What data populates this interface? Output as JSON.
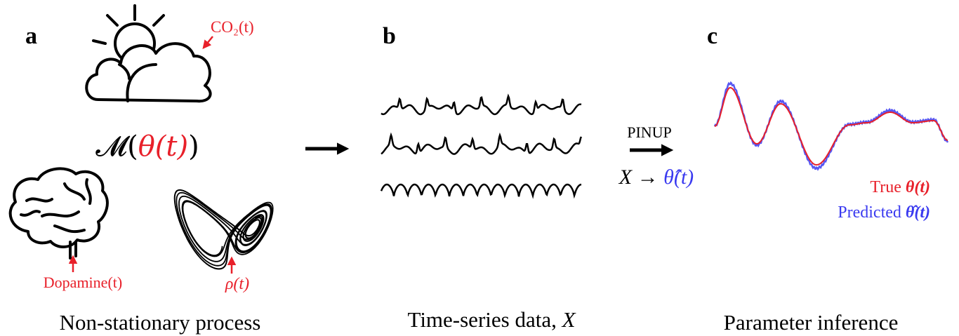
{
  "panels": [
    {
      "label": "a",
      "caption": "Non-stationary process"
    },
    {
      "label": "b",
      "caption": "Time-series data, ",
      "caption_var": "X"
    },
    {
      "label": "c",
      "caption": "Parameter inference"
    }
  ],
  "panel_a": {
    "co2": "CO₂(t)",
    "model": {
      "prefix": "𝓜(",
      "param": "θ(t)",
      "suffix": ")"
    },
    "dopamine": "Dopamine(t)",
    "rho": "ρ(t)"
  },
  "pinup": {
    "name": "PINUP",
    "input": "X → ",
    "output": "θ̂(t)"
  },
  "legend": [
    {
      "name": "True ",
      "symbol": "θ(t)",
      "color": "#e8202a"
    },
    {
      "name": "Predicted ",
      "symbol": "θ̂(t)",
      "color": "#3a3af0"
    }
  ]
}
